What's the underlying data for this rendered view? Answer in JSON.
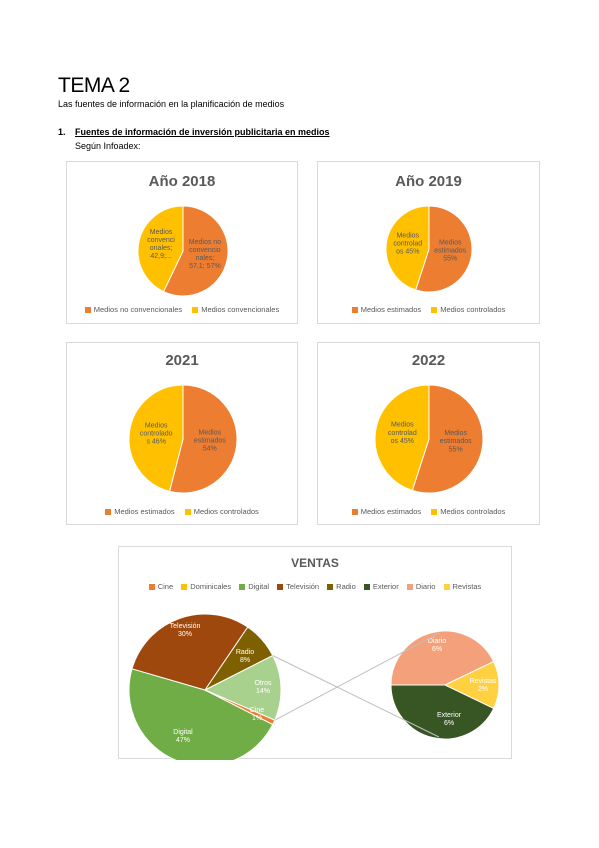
{
  "header": {
    "title": "TEMA 2",
    "subtitle": "Las fuentes de información en la planificación de medios",
    "section_number": "1.",
    "section_title": "Fuentes de información de inversión publicitaria en medios",
    "source": "Según Infoadex:"
  },
  "colors": {
    "orange": "#ed7d31",
    "yellow": "#ffc000",
    "label": "#595959"
  },
  "chart_data": [
    {
      "type": "pie",
      "title": "Año 2018",
      "categories": [
        "Medios no convencionales",
        "Medios convencionales"
      ],
      "values": [
        57.1,
        42.9
      ],
      "data_labels": [
        "Medios no convencio nales; 57,1; 57%",
        "Medios convenci onales; 42,9;..."
      ],
      "legend": "bottom"
    },
    {
      "type": "pie",
      "title": "Año 2019",
      "categories": [
        "Medios estimados",
        "Medios controlados"
      ],
      "values": [
        55,
        45
      ],
      "data_labels": [
        "Medios estimados 55%",
        "Medios controlad os 45%"
      ],
      "legend": "bottom"
    },
    {
      "type": "pie",
      "title": "2021",
      "categories": [
        "Medios estimados",
        "Medios controlados"
      ],
      "values": [
        54,
        46
      ],
      "data_labels": [
        "Medios estimados 54%",
        "Medios controlado s 46%"
      ],
      "legend": "bottom"
    },
    {
      "type": "pie",
      "title": "2022",
      "categories": [
        "Medios estimados",
        "Medios controlados"
      ],
      "values": [
        55,
        45
      ],
      "data_labels": [
        "Medios estimados 55%",
        "Medios controlad os 45%"
      ],
      "legend": "bottom"
    },
    {
      "type": "pie",
      "title": "VENTAS",
      "legend_entries": [
        "Cine",
        "Dominicales",
        "Digital",
        "Televisión",
        "Radio",
        "Exterior",
        "Diario",
        "Revistas"
      ],
      "main": {
        "categories": [
          "Digital",
          "Televisión",
          "Radio",
          "Otros",
          "Cine"
        ],
        "values": [
          47,
          30,
          8,
          14,
          1
        ],
        "data_labels": [
          "Digital 47%",
          "Televisión 30%",
          "Radio 8%",
          "Otros 14%",
          "Cine 1%"
        ]
      },
      "secondary": {
        "categories": [
          "Diario",
          "Revistas",
          "Exterior"
        ],
        "values": [
          6,
          2,
          6
        ],
        "data_labels": [
          "Diario 6%",
          "Revistas 2%",
          "Exterior 6%"
        ]
      },
      "legend": "top"
    }
  ]
}
